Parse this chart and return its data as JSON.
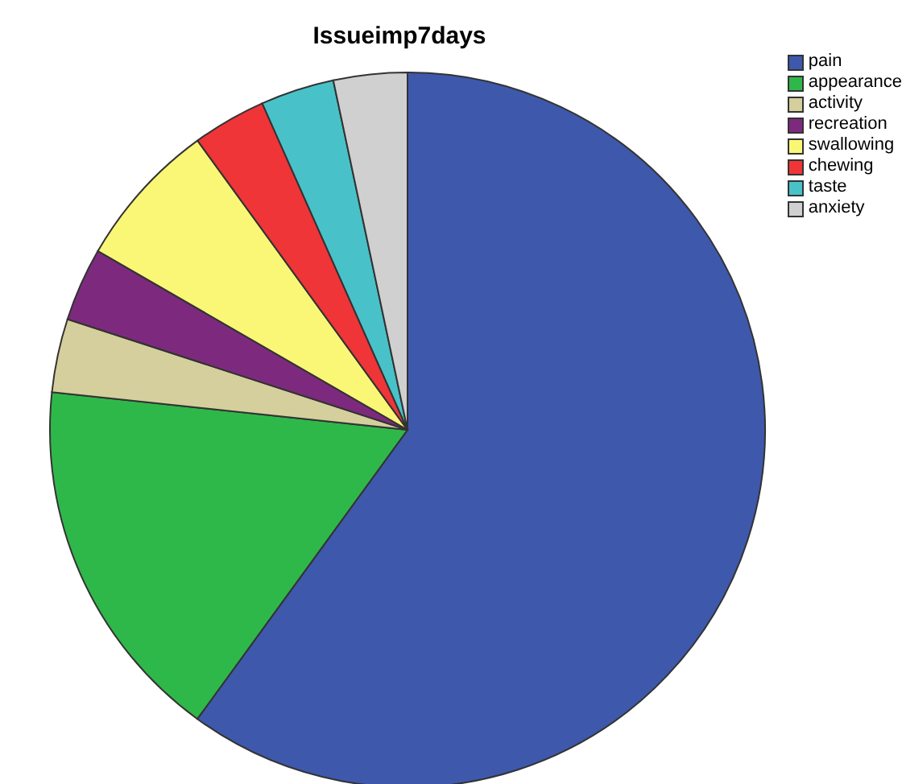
{
  "chart_data": {
    "type": "pie",
    "title": "Issueimp7days",
    "categories": [
      "pain",
      "appearance",
      "activity",
      "recreation",
      "swallowing",
      "chewing",
      "taste",
      "anxiety"
    ],
    "values": [
      60,
      16.68,
      3.33,
      3.33,
      6.67,
      3.33,
      3.33,
      3.33
    ],
    "colors": [
      "#3e58ac",
      "#2fb84a",
      "#d4cf9c",
      "#7d2a7e",
      "#fbf776",
      "#ef3538",
      "#48c2c8",
      "#d0d0d0"
    ],
    "legend": "top right"
  }
}
